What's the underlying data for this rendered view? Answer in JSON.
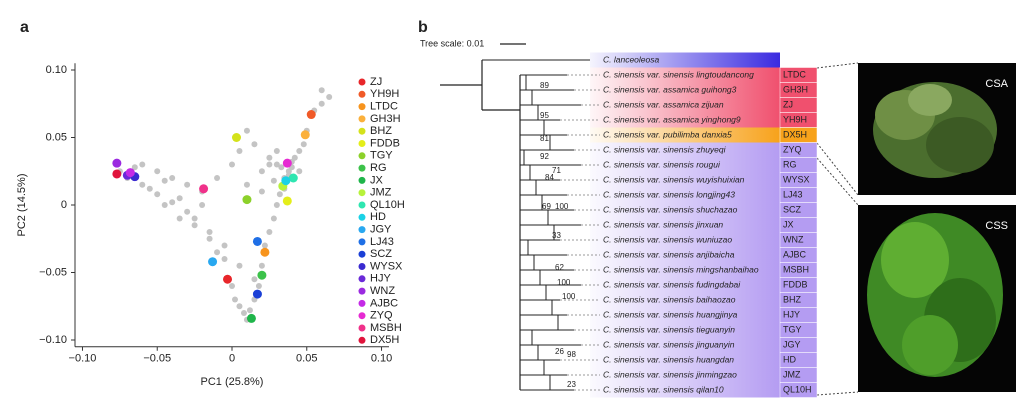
{
  "panel_labels": [
    "a",
    "b"
  ],
  "chart_data": {
    "type": "scatter",
    "xlabel": "PC1 (25.8%)",
    "ylabel": "PC2 (14.5%)",
    "xlim": [
      -0.105,
      0.105
    ],
    "ylim": [
      -0.105,
      0.105
    ],
    "xticks": [
      {
        "value": -0.1,
        "label": "−0.10"
      },
      {
        "value": -0.05,
        "label": "−0.05"
      },
      0,
      0.05,
      {
        "value": 0.1,
        "label": "0.10"
      }
    ],
    "yticks": [
      {
        "value": -0.1,
        "label": "−0.10"
      },
      {
        "value": -0.05,
        "label": "−0.05"
      },
      0,
      0.05,
      {
        "value": 0.1,
        "label": "0.10"
      }
    ],
    "background": {
      "color": "#c4c4c4",
      "x": [
        -0.075,
        -0.07,
        -0.065,
        -0.06,
        -0.055,
        -0.05,
        -0.045,
        -0.04,
        -0.035,
        -0.03,
        -0.025,
        -0.02,
        -0.015,
        -0.01,
        -0.005,
        0,
        0.002,
        0.005,
        0.008,
        0.01,
        0.012,
        0.015,
        0.018,
        0.02,
        0.022,
        0.025,
        0.028,
        0.03,
        0.032,
        0.035,
        0.038,
        0.04,
        0.042,
        0.045,
        0.048,
        0.05,
        0.055,
        0.06,
        0.065,
        -0.06,
        -0.05,
        -0.04,
        -0.03,
        -0.02,
        -0.01,
        0,
        0.01,
        0.02,
        0.03,
        0.04,
        -0.045,
        -0.035,
        -0.025,
        -0.015,
        -0.005,
        0.005,
        0.015,
        0.025,
        0.035,
        0.045,
        0.06,
        0.03,
        0.025,
        0.02,
        0.015,
        0.01,
        0.005,
        0.028,
        0.033,
        0.038
      ],
      "y": [
        0.025,
        0.02,
        0.028,
        0.015,
        0.012,
        0.008,
        0.018,
        0.002,
        0.005,
        -0.005,
        -0.01,
        0.0,
        -0.025,
        -0.035,
        -0.04,
        -0.06,
        -0.07,
        -0.075,
        -0.08,
        -0.085,
        -0.078,
        -0.07,
        -0.06,
        -0.045,
        -0.03,
        -0.02,
        -0.01,
        0.0,
        0.008,
        0.02,
        0.025,
        0.028,
        0.035,
        0.04,
        0.045,
        0.055,
        0.07,
        0.075,
        0.08,
        0.03,
        0.025,
        0.02,
        0.015,
        0.01,
        0.02,
        0.03,
        0.015,
        0.01,
        0.03,
        0.032,
        0.0,
        -0.01,
        -0.015,
        -0.02,
        -0.03,
        -0.045,
        -0.055,
        0.035,
        0.012,
        0.025,
        0.085,
        0.04,
        0.03,
        0.025,
        0.045,
        0.055,
        0.04,
        0.018,
        0.028,
        0.022
      ]
    },
    "series": [
      {
        "name": "ZJ",
        "color": "#e8262a",
        "x": [
          -0.003
        ],
        "y": [
          -0.055
        ]
      },
      {
        "name": "YH9H",
        "color": "#f05a28",
        "x": [
          0.053
        ],
        "y": [
          0.067
        ]
      },
      {
        "name": "LTDC",
        "color": "#f7941d",
        "x": [
          0.022
        ],
        "y": [
          -0.035
        ]
      },
      {
        "name": "GH3H",
        "color": "#fbb03b",
        "x": [
          0.049
        ],
        "y": [
          0.052
        ]
      },
      {
        "name": "BHZ",
        "color": "#d4e21b",
        "x": [
          0.003
        ],
        "y": [
          0.05
        ]
      },
      {
        "name": "FDDB",
        "color": "#e4ee1a",
        "x": [
          0.037
        ],
        "y": [
          0.003
        ]
      },
      {
        "name": "TGY",
        "color": "#8cd12a",
        "x": [
          0.01
        ],
        "y": [
          0.004
        ]
      },
      {
        "name": "RG",
        "color": "#3cc24a",
        "x": [
          0.02
        ],
        "y": [
          -0.052
        ]
      },
      {
        "name": "JX",
        "color": "#1fb54a",
        "x": [
          0.013
        ],
        "y": [
          -0.084
        ]
      },
      {
        "name": "JMZ",
        "color": "#b7f23a",
        "x": [
          0.034
        ],
        "y": [
          0.014
        ]
      },
      {
        "name": "QL10H",
        "color": "#2ee6b0",
        "x": [
          0.041
        ],
        "y": [
          0.02
        ]
      },
      {
        "name": "HD",
        "color": "#1ad2e6",
        "x": [
          0.036
        ],
        "y": [
          0.018
        ]
      },
      {
        "name": "JGY",
        "color": "#29a8f0",
        "x": [
          -0.013
        ],
        "y": [
          -0.042
        ]
      },
      {
        "name": "LJ43",
        "color": "#1f6fe6",
        "x": [
          0.017
        ],
        "y": [
          -0.027
        ]
      },
      {
        "name": "SCZ",
        "color": "#1a3fd6",
        "x": [
          0.017
        ],
        "y": [
          -0.066
        ]
      },
      {
        "name": "WYSX",
        "color": "#3a2ad0",
        "x": [
          -0.065
        ],
        "y": [
          0.021
        ]
      },
      {
        "name": "HJY",
        "color": "#6a2ad8",
        "x": [
          -0.07
        ],
        "y": [
          0.022
        ]
      },
      {
        "name": "WNZ",
        "color": "#9b2ae0",
        "x": [
          -0.077
        ],
        "y": [
          0.031
        ]
      },
      {
        "name": "AJBC",
        "color": "#c42ae6",
        "x": [
          -0.068
        ],
        "y": [
          0.024
        ]
      },
      {
        "name": "ZYQ",
        "color": "#e62ad2",
        "x": [
          0.037
        ],
        "y": [
          0.031
        ]
      },
      {
        "name": "MSBH",
        "color": "#f0318a",
        "x": [
          -0.019
        ],
        "y": [
          0.012
        ]
      },
      {
        "name": "DX5H",
        "color": "#e0143c",
        "x": [
          -0.077
        ],
        "y": [
          0.023
        ]
      }
    ]
  },
  "tree": {
    "scale_label": "Tree scale: 0.01",
    "leaves": [
      {
        "name": "C. lanceoleosa",
        "color": "#3a2ae0"
      },
      {
        "name": "C. sinensis var. sinensis lingtoudancong",
        "code": "LTDC",
        "color": "#f0506e"
      },
      {
        "name": "C. sinensis var. assamica guihong3",
        "code": "GH3H",
        "color": "#f0506e"
      },
      {
        "name": "C. sinensis var. assamica zijuan",
        "code": "ZJ",
        "color": "#f0506e"
      },
      {
        "name": "C. sinensis var. assamica yinghong9",
        "code": "YH9H",
        "color": "#f0506e"
      },
      {
        "name": "C. sinensis var. pubilimba danxia5",
        "code": "DX5H",
        "color": "#f7a21b"
      },
      {
        "name": "C. sinensis var. sinensis zhuyeqi",
        "code": "ZYQ",
        "color": "#b49cf2"
      },
      {
        "name": "C. sinensis var. sinensis rougui",
        "code": "RG",
        "color": "#b49cf2"
      },
      {
        "name": "C. sinensis var. sinensis wuyishuixian",
        "code": "WYSX",
        "color": "#b49cf2"
      },
      {
        "name": "C. sinensis var. sinensis longjing43",
        "code": "LJ43",
        "color": "#b49cf2"
      },
      {
        "name": "C. sinensis var. sinensis shuchazao",
        "code": "SCZ",
        "color": "#b49cf2"
      },
      {
        "name": "C. sinensis var. sinensis jinxuan",
        "code": "JX",
        "color": "#b49cf2"
      },
      {
        "name": "C. sinensis var. sinensis wuniuzao",
        "code": "WNZ",
        "color": "#b49cf2"
      },
      {
        "name": "C. sinensis var. sinensis anjibaicha",
        "code": "AJBC",
        "color": "#b49cf2"
      },
      {
        "name": "C. sinensis var. sinensis mingshanbaihao",
        "code": "MSBH",
        "color": "#b49cf2"
      },
      {
        "name": "C. sinensis var. sinensis fudingdabai",
        "code": "FDDB",
        "color": "#b49cf2"
      },
      {
        "name": "C. sinensis var. sinensis baihaozao",
        "code": "BHZ",
        "color": "#b49cf2"
      },
      {
        "name": "C. sinensis var. sinensis huangjinya",
        "code": "HJY",
        "color": "#b49cf2"
      },
      {
        "name": "C. sinensis var. sinensis tieguanyin",
        "code": "TGY",
        "color": "#b49cf2"
      },
      {
        "name": "C. sinensis var. sinensis jinguanyin",
        "code": "JGY",
        "color": "#b49cf2"
      },
      {
        "name": "C. sinensis var. sinensis huangdan",
        "code": "HD",
        "color": "#b49cf2"
      },
      {
        "name": "C. sinensis var. sinensis jinmingzao",
        "code": "JMZ",
        "color": "#b49cf2"
      },
      {
        "name": "C. sinensis var. sinensis qilan10",
        "code": "QL10H",
        "color": "#b49cf2"
      }
    ],
    "bootstraps": [
      89,
      95,
      81,
      92,
      71,
      84,
      69,
      100,
      33,
      62,
      100,
      100,
      26,
      98,
      23
    ]
  },
  "photo_labels": [
    "CSA",
    "CSS"
  ]
}
